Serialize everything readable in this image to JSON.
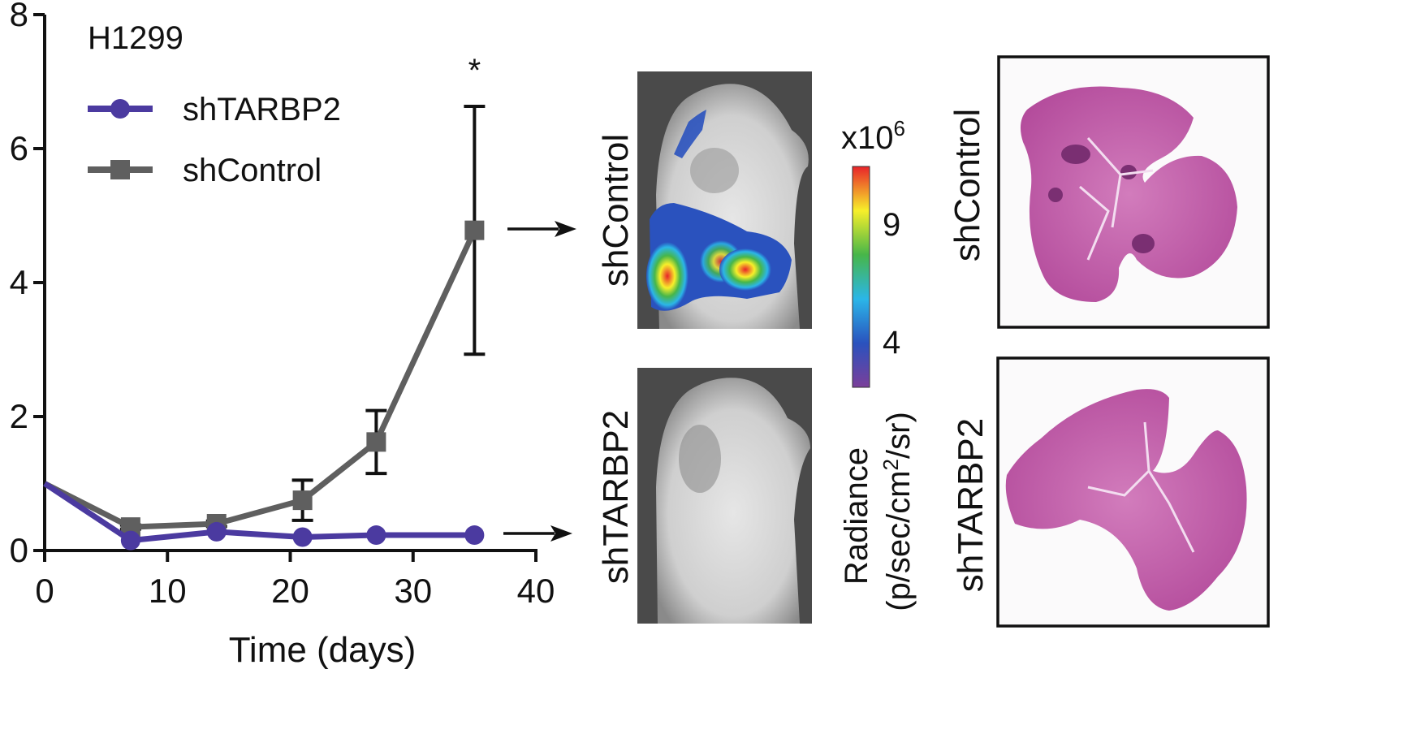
{
  "chart_data": {
    "type": "line",
    "title": "H1299",
    "xlabel": "Time (days)",
    "ylabel": "",
    "xlim": [
      0,
      40
    ],
    "ylim": [
      0,
      8
    ],
    "xticks": [
      "0",
      "10",
      "20",
      "30",
      "40"
    ],
    "yticks": [
      "0",
      "2",
      "4",
      "6",
      "8"
    ],
    "legend_position": "top-left",
    "series": [
      {
        "name": "shTARBP2",
        "color": "#4b3aa0",
        "marker": "circle",
        "x": [
          0,
          7,
          14,
          21,
          27,
          35
        ],
        "y": [
          1.0,
          0.15,
          0.28,
          0.2,
          0.23,
          0.23
        ]
      },
      {
        "name": "shControl",
        "color": "#5f5f5f",
        "marker": "square",
        "x": [
          0,
          7,
          14,
          21,
          27,
          35
        ],
        "y": [
          1.0,
          0.35,
          0.4,
          0.75,
          1.62,
          4.78
        ],
        "error": [
          0,
          0.03,
          0.04,
          0.3,
          0.47,
          1.85
        ]
      }
    ],
    "annotations": [
      {
        "text": "*",
        "x": 35
      }
    ]
  },
  "imaging": {
    "labels": {
      "top": "shControl",
      "bottom": "shTARBP2"
    },
    "colorbar": {
      "multiplier_base": "x10",
      "multiplier_exp": "6",
      "ticks": [
        "9",
        "4"
      ],
      "label_line1": "Radiance",
      "label_line2_pre": "(p/sec/cm",
      "label_line2_sup": "2",
      "label_line2_post": "/sr)",
      "colors": [
        "#e8232a",
        "#f7ef2a",
        "#47b649",
        "#2bb6e8",
        "#2a52be",
        "#7b3f9a"
      ]
    }
  },
  "histology": {
    "labels": {
      "top": "shControl",
      "bottom": "shTARBP2"
    },
    "stain_color": "#c25aa8"
  }
}
